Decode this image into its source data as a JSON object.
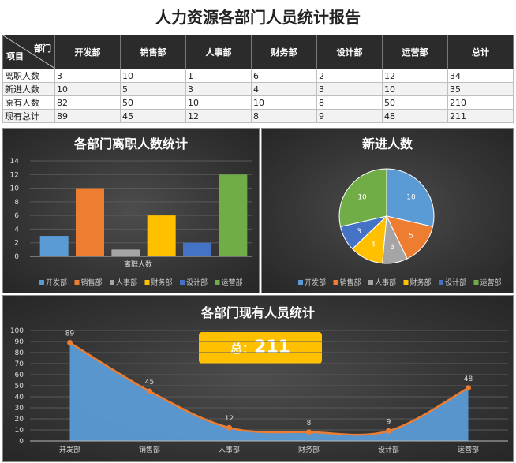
{
  "title": "人力资源各部门人员统计报告",
  "table": {
    "corner_top": "部门",
    "corner_bottom": "项目",
    "headers": [
      "开发部",
      "销售部",
      "人事部",
      "财务部",
      "设计部",
      "运营部",
      "总计"
    ],
    "rows": [
      {
        "label": "离职人数",
        "values": [
          "3",
          "10",
          "1",
          "6",
          "2",
          "12",
          "34"
        ]
      },
      {
        "label": "新进人数",
        "values": [
          "10",
          "5",
          "3",
          "4",
          "3",
          "10",
          "35"
        ]
      },
      {
        "label": "原有人数",
        "values": [
          "82",
          "50",
          "10",
          "10",
          "8",
          "50",
          "210"
        ]
      },
      {
        "label": "现有总计",
        "values": [
          "89",
          "45",
          "12",
          "8",
          "9",
          "48",
          "211"
        ]
      }
    ]
  },
  "colors": {
    "dept": [
      "#5b9bd5",
      "#ed7d31",
      "#a5a5a5",
      "#ffc000",
      "#4472c4",
      "#70ad47"
    ],
    "line": "#ed7d31",
    "area": "#5b9bd5",
    "badge": "#ffc000"
  },
  "total_badge": {
    "label": "总：",
    "value": "211"
  },
  "chart_data": [
    {
      "type": "bar",
      "title": "各部门离职人数统计",
      "xlabel": "离职人数",
      "categories": [
        "离职人数"
      ],
      "series": [
        {
          "name": "开发部",
          "values": [
            3
          ]
        },
        {
          "name": "销售部",
          "values": [
            10
          ]
        },
        {
          "name": "人事部",
          "values": [
            1
          ]
        },
        {
          "name": "财务部",
          "values": [
            6
          ]
        },
        {
          "name": "设计部",
          "values": [
            2
          ]
        },
        {
          "name": "运营部",
          "values": [
            12
          ]
        }
      ],
      "ylim": [
        0,
        14
      ],
      "yticks": [
        0,
        2,
        4,
        6,
        8,
        10,
        12,
        14
      ],
      "grid": true,
      "legend": "bottom"
    },
    {
      "type": "pie",
      "title": "新进人数",
      "labels": [
        "开发部",
        "销售部",
        "人事部",
        "财务部",
        "设计部",
        "运营部"
      ],
      "values": [
        10,
        5,
        3,
        4,
        3,
        10
      ],
      "legend": "bottom"
    },
    {
      "type": "area",
      "title": "各部门现有人员统计",
      "categories": [
        "开发部",
        "销售部",
        "人事部",
        "财务部",
        "设计部",
        "运营部"
      ],
      "values": [
        89,
        45,
        12,
        8,
        9,
        48
      ],
      "ylim": [
        0,
        100
      ],
      "yticks": [
        0,
        10,
        20,
        30,
        40,
        50,
        60,
        70,
        80,
        90,
        100
      ],
      "grid": true
    }
  ]
}
